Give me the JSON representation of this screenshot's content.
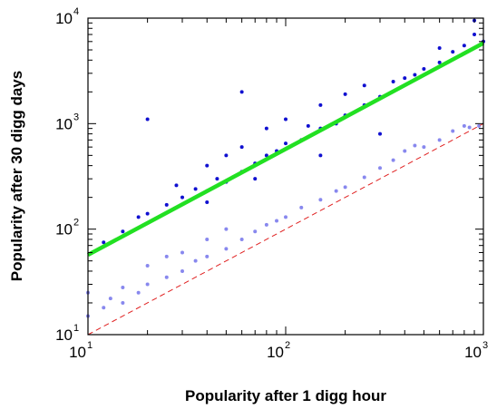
{
  "chart_data": {
    "type": "scatter",
    "title": "",
    "xlabel": "Popularity after 1 digg hour",
    "ylabel": "Popularity after 30 digg days",
    "x_scale": "log",
    "y_scale": "log",
    "xlim": [
      10,
      1000
    ],
    "ylim": [
      10,
      10000
    ],
    "x_ticks": [
      {
        "base": "10",
        "exp": "1",
        "value": 10
      },
      {
        "base": "10",
        "exp": "2",
        "value": 100
      },
      {
        "base": "10",
        "exp": "3",
        "value": 1000
      }
    ],
    "y_ticks": [
      {
        "base": "10",
        "exp": "1",
        "value": 10
      },
      {
        "base": "10",
        "exp": "2",
        "value": 100
      },
      {
        "base": "10",
        "exp": "3",
        "value": 1000
      },
      {
        "base": "10",
        "exp": "4",
        "value": 10000
      }
    ],
    "grid": false,
    "legend": "none",
    "series": [
      {
        "color": "#1010d0",
        "marker": "dot",
        "points": [
          [
            12,
            75
          ],
          [
            15,
            95
          ],
          [
            18,
            130
          ],
          [
            20,
            140
          ],
          [
            25,
            170
          ],
          [
            28,
            260
          ],
          [
            30,
            200
          ],
          [
            35,
            240
          ],
          [
            40,
            230
          ],
          [
            40,
            400
          ],
          [
            45,
            300
          ],
          [
            50,
            280
          ],
          [
            50,
            500
          ],
          [
            60,
            350
          ],
          [
            60,
            600
          ],
          [
            70,
            420
          ],
          [
            80,
            500
          ],
          [
            80,
            900
          ],
          [
            90,
            550
          ],
          [
            100,
            650
          ],
          [
            100,
            1100
          ],
          [
            120,
            700
          ],
          [
            130,
            950
          ],
          [
            150,
            900
          ],
          [
            150,
            1500
          ],
          [
            180,
            1000
          ],
          [
            200,
            1200
          ],
          [
            200,
            1900
          ],
          [
            250,
            1500
          ],
          [
            250,
            2300
          ],
          [
            300,
            1800
          ],
          [
            350,
            2500
          ],
          [
            400,
            2700
          ],
          [
            450,
            2900
          ],
          [
            500,
            3300
          ],
          [
            600,
            3800
          ],
          [
            700,
            4800
          ],
          [
            800,
            5500
          ],
          [
            900,
            7000
          ],
          [
            1000,
            6000
          ],
          [
            900,
            9500
          ],
          [
            600,
            5200
          ],
          [
            300,
            800
          ],
          [
            150,
            500
          ],
          [
            70,
            300
          ],
          [
            40,
            180
          ],
          [
            20,
            1100
          ],
          [
            60,
            2000
          ]
        ]
      },
      {
        "color": "#8888ee",
        "marker": "dot",
        "points": [
          [
            10,
            15
          ],
          [
            10,
            25
          ],
          [
            12,
            18
          ],
          [
            13,
            22
          ],
          [
            15,
            20
          ],
          [
            15,
            28
          ],
          [
            18,
            25
          ],
          [
            20,
            30
          ],
          [
            20,
            45
          ],
          [
            25,
            35
          ],
          [
            25,
            55
          ],
          [
            30,
            40
          ],
          [
            30,
            60
          ],
          [
            35,
            50
          ],
          [
            40,
            55
          ],
          [
            40,
            80
          ],
          [
            50,
            65
          ],
          [
            50,
            100
          ],
          [
            60,
            80
          ],
          [
            70,
            95
          ],
          [
            80,
            110
          ],
          [
            90,
            120
          ],
          [
            100,
            130
          ],
          [
            120,
            160
          ],
          [
            150,
            190
          ],
          [
            180,
            230
          ],
          [
            200,
            250
          ],
          [
            250,
            310
          ],
          [
            300,
            380
          ],
          [
            350,
            450
          ],
          [
            400,
            550
          ],
          [
            450,
            620
          ],
          [
            500,
            600
          ],
          [
            600,
            700
          ],
          [
            700,
            850
          ],
          [
            800,
            950
          ],
          [
            850,
            920
          ],
          [
            950,
            950
          ]
        ]
      }
    ],
    "fit_line": {
      "color": "#22e022",
      "points": [
        [
          10,
          57
        ],
        [
          1000,
          5800
        ]
      ]
    },
    "reference_line": {
      "color": "#e02020",
      "style": "dashed",
      "points": [
        [
          10,
          10
        ],
        [
          1000,
          1000
        ]
      ]
    }
  }
}
